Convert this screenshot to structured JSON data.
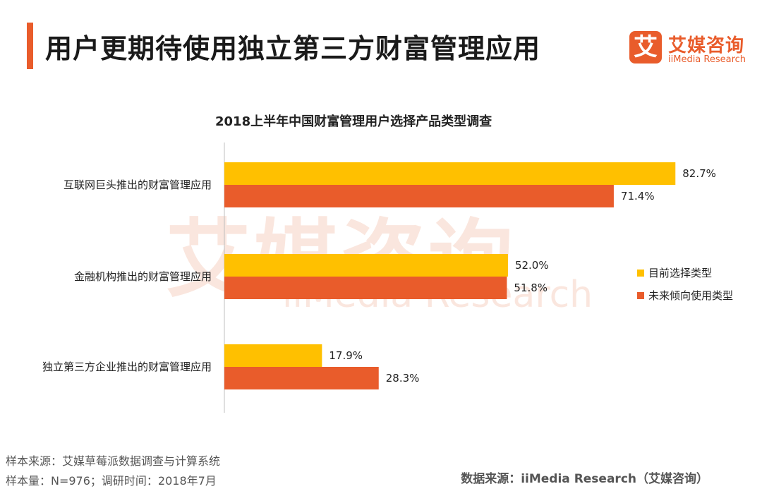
{
  "header": {
    "title": "用户更期待使用独立第三方财富管理应用",
    "logo_mark": "艾",
    "logo_cn": "艾媒咨询",
    "logo_en": "iiMedia Research"
  },
  "watermark": {
    "cn": "艾媒咨询",
    "en": "iiMedia Research"
  },
  "colors": {
    "accent": "#e95c2b",
    "current": "#ffc000",
    "future": "#e95c2b"
  },
  "chart_data": {
    "type": "bar",
    "orientation": "horizontal",
    "title": "2018上半年中国财富管理用户选择产品类型调查",
    "categories": [
      "互联网巨头推出的财富管理应用",
      "金融机构推出的财富管理应用",
      "独立第三方企业推出的财富管理应用"
    ],
    "series": [
      {
        "name": "目前选择类型",
        "values": [
          82.7,
          52.0,
          17.9
        ],
        "color": "#ffc000"
      },
      {
        "name": "未来倾向使用类型",
        "values": [
          71.4,
          51.8,
          28.3
        ],
        "color": "#e95c2b"
      }
    ],
    "value_suffix": "%",
    "xlim": [
      0,
      100
    ],
    "grid": false,
    "legend": "right"
  },
  "footer": {
    "source_line1": "样本来源：艾媒草莓派数据调查与计算系统",
    "source_line2": "样本量：N=976；调研时间：2018年7月",
    "data_source": "数据来源：iiMedia Research（艾媒咨询）"
  }
}
